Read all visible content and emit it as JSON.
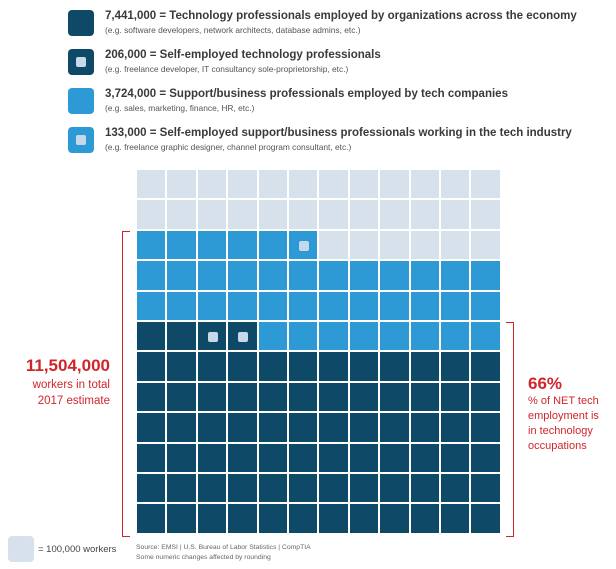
{
  "chart_data": {
    "type": "waffle",
    "unit_value": 100000,
    "grid_columns": 12,
    "grid_rows": 12,
    "series": [
      {
        "value": 7441000,
        "label": "7,441,000 = Technology professionals employed by organizations across the economy",
        "example": "(e.g. software developers, network architects, database admins, etc.)",
        "color": "#0e4a67"
      },
      {
        "value": 206000,
        "label": "206,000 = Self-employed technology professionals",
        "example": "(e.g. freelance developer, IT consultancy sole-proprietorship, etc.)",
        "color": "#0e4a67"
      },
      {
        "value": 3724000,
        "label": "3,724,000 = Support/business professionals employed by tech companies",
        "example": "(e.g. sales, marketing, finance, HR, etc.)",
        "color": "#2d9ad5"
      },
      {
        "value": 133000,
        "label": "133,000 = Self-employed support/business professionals working in the tech industry",
        "example": "(e.g. freelance graphic designer, channel program consultant, etc.)",
        "color": "#2d9ad5"
      }
    ],
    "empty_color": "#d6e1ec",
    "total": {
      "value": "11,504,000",
      "line1": "workers in total",
      "line2": "2017 estimate"
    },
    "share": {
      "value": "66%",
      "lines": [
        "% of NET tech",
        "employment is",
        "in technology",
        "occupations"
      ]
    },
    "unit_label": "= 100,000 workers",
    "source": "Source: EMSI | U.S. Bureau of Labor Statistics | CompTIA",
    "note": "Some numeric changes affected by rounding"
  }
}
